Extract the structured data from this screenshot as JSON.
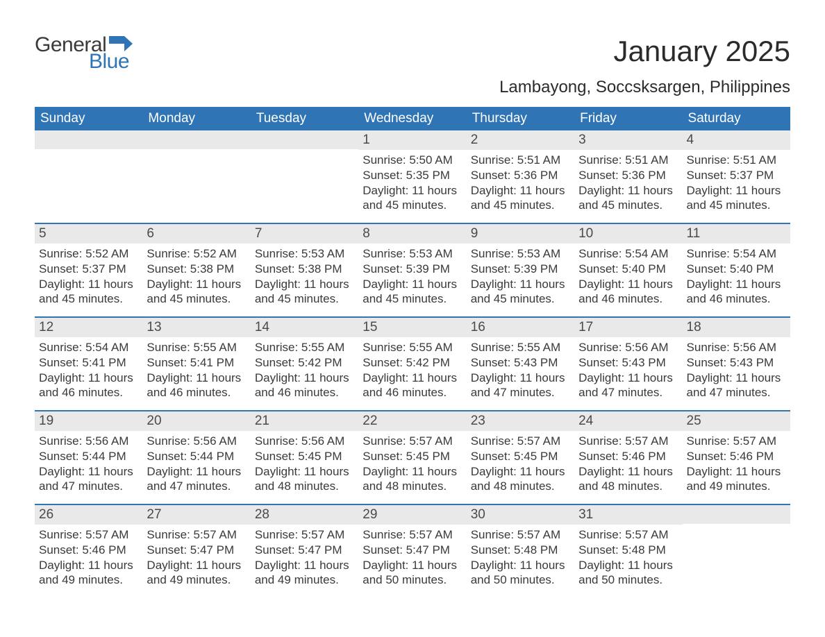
{
  "logo": {
    "word1": "General",
    "word2": "Blue",
    "flag_color": "#2f74b5"
  },
  "title": "January 2025",
  "location": "Lambayong, Soccsksargen, Philippines",
  "colors": {
    "header_bg": "#2f74b5",
    "header_text": "#ffffff",
    "daynum_bg": "#e9e9e9",
    "text": "#3a3a3a",
    "rule": "#2f74b5",
    "background": "#ffffff"
  },
  "weekdays": [
    "Sunday",
    "Monday",
    "Tuesday",
    "Wednesday",
    "Thursday",
    "Friday",
    "Saturday"
  ],
  "weeks": [
    [
      {
        "n": "",
        "sunrise": "",
        "sunset": "",
        "daylight": ""
      },
      {
        "n": "",
        "sunrise": "",
        "sunset": "",
        "daylight": ""
      },
      {
        "n": "",
        "sunrise": "",
        "sunset": "",
        "daylight": ""
      },
      {
        "n": "1",
        "sunrise": "Sunrise: 5:50 AM",
        "sunset": "Sunset: 5:35 PM",
        "daylight": "Daylight: 11 hours and 45 minutes."
      },
      {
        "n": "2",
        "sunrise": "Sunrise: 5:51 AM",
        "sunset": "Sunset: 5:36 PM",
        "daylight": "Daylight: 11 hours and 45 minutes."
      },
      {
        "n": "3",
        "sunrise": "Sunrise: 5:51 AM",
        "sunset": "Sunset: 5:36 PM",
        "daylight": "Daylight: 11 hours and 45 minutes."
      },
      {
        "n": "4",
        "sunrise": "Sunrise: 5:51 AM",
        "sunset": "Sunset: 5:37 PM",
        "daylight": "Daylight: 11 hours and 45 minutes."
      }
    ],
    [
      {
        "n": "5",
        "sunrise": "Sunrise: 5:52 AM",
        "sunset": "Sunset: 5:37 PM",
        "daylight": "Daylight: 11 hours and 45 minutes."
      },
      {
        "n": "6",
        "sunrise": "Sunrise: 5:52 AM",
        "sunset": "Sunset: 5:38 PM",
        "daylight": "Daylight: 11 hours and 45 minutes."
      },
      {
        "n": "7",
        "sunrise": "Sunrise: 5:53 AM",
        "sunset": "Sunset: 5:38 PM",
        "daylight": "Daylight: 11 hours and 45 minutes."
      },
      {
        "n": "8",
        "sunrise": "Sunrise: 5:53 AM",
        "sunset": "Sunset: 5:39 PM",
        "daylight": "Daylight: 11 hours and 45 minutes."
      },
      {
        "n": "9",
        "sunrise": "Sunrise: 5:53 AM",
        "sunset": "Sunset: 5:39 PM",
        "daylight": "Daylight: 11 hours and 45 minutes."
      },
      {
        "n": "10",
        "sunrise": "Sunrise: 5:54 AM",
        "sunset": "Sunset: 5:40 PM",
        "daylight": "Daylight: 11 hours and 46 minutes."
      },
      {
        "n": "11",
        "sunrise": "Sunrise: 5:54 AM",
        "sunset": "Sunset: 5:40 PM",
        "daylight": "Daylight: 11 hours and 46 minutes."
      }
    ],
    [
      {
        "n": "12",
        "sunrise": "Sunrise: 5:54 AM",
        "sunset": "Sunset: 5:41 PM",
        "daylight": "Daylight: 11 hours and 46 minutes."
      },
      {
        "n": "13",
        "sunrise": "Sunrise: 5:55 AM",
        "sunset": "Sunset: 5:41 PM",
        "daylight": "Daylight: 11 hours and 46 minutes."
      },
      {
        "n": "14",
        "sunrise": "Sunrise: 5:55 AM",
        "sunset": "Sunset: 5:42 PM",
        "daylight": "Daylight: 11 hours and 46 minutes."
      },
      {
        "n": "15",
        "sunrise": "Sunrise: 5:55 AM",
        "sunset": "Sunset: 5:42 PM",
        "daylight": "Daylight: 11 hours and 46 minutes."
      },
      {
        "n": "16",
        "sunrise": "Sunrise: 5:55 AM",
        "sunset": "Sunset: 5:43 PM",
        "daylight": "Daylight: 11 hours and 47 minutes."
      },
      {
        "n": "17",
        "sunrise": "Sunrise: 5:56 AM",
        "sunset": "Sunset: 5:43 PM",
        "daylight": "Daylight: 11 hours and 47 minutes."
      },
      {
        "n": "18",
        "sunrise": "Sunrise: 5:56 AM",
        "sunset": "Sunset: 5:43 PM",
        "daylight": "Daylight: 11 hours and 47 minutes."
      }
    ],
    [
      {
        "n": "19",
        "sunrise": "Sunrise: 5:56 AM",
        "sunset": "Sunset: 5:44 PM",
        "daylight": "Daylight: 11 hours and 47 minutes."
      },
      {
        "n": "20",
        "sunrise": "Sunrise: 5:56 AM",
        "sunset": "Sunset: 5:44 PM",
        "daylight": "Daylight: 11 hours and 47 minutes."
      },
      {
        "n": "21",
        "sunrise": "Sunrise: 5:56 AM",
        "sunset": "Sunset: 5:45 PM",
        "daylight": "Daylight: 11 hours and 48 minutes."
      },
      {
        "n": "22",
        "sunrise": "Sunrise: 5:57 AM",
        "sunset": "Sunset: 5:45 PM",
        "daylight": "Daylight: 11 hours and 48 minutes."
      },
      {
        "n": "23",
        "sunrise": "Sunrise: 5:57 AM",
        "sunset": "Sunset: 5:45 PM",
        "daylight": "Daylight: 11 hours and 48 minutes."
      },
      {
        "n": "24",
        "sunrise": "Sunrise: 5:57 AM",
        "sunset": "Sunset: 5:46 PM",
        "daylight": "Daylight: 11 hours and 48 minutes."
      },
      {
        "n": "25",
        "sunrise": "Sunrise: 5:57 AM",
        "sunset": "Sunset: 5:46 PM",
        "daylight": "Daylight: 11 hours and 49 minutes."
      }
    ],
    [
      {
        "n": "26",
        "sunrise": "Sunrise: 5:57 AM",
        "sunset": "Sunset: 5:46 PM",
        "daylight": "Daylight: 11 hours and 49 minutes."
      },
      {
        "n": "27",
        "sunrise": "Sunrise: 5:57 AM",
        "sunset": "Sunset: 5:47 PM",
        "daylight": "Daylight: 11 hours and 49 minutes."
      },
      {
        "n": "28",
        "sunrise": "Sunrise: 5:57 AM",
        "sunset": "Sunset: 5:47 PM",
        "daylight": "Daylight: 11 hours and 49 minutes."
      },
      {
        "n": "29",
        "sunrise": "Sunrise: 5:57 AM",
        "sunset": "Sunset: 5:47 PM",
        "daylight": "Daylight: 11 hours and 50 minutes."
      },
      {
        "n": "30",
        "sunrise": "Sunrise: 5:57 AM",
        "sunset": "Sunset: 5:48 PM",
        "daylight": "Daylight: 11 hours and 50 minutes."
      },
      {
        "n": "31",
        "sunrise": "Sunrise: 5:57 AM",
        "sunset": "Sunset: 5:48 PM",
        "daylight": "Daylight: 11 hours and 50 minutes."
      },
      {
        "n": "",
        "sunrise": "",
        "sunset": "",
        "daylight": ""
      }
    ]
  ]
}
